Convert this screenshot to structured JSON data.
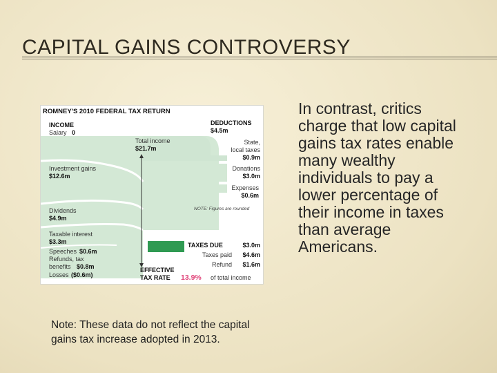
{
  "slide": {
    "title": "CAPITAL GAINS CONTROVERSY",
    "note": "Note: These data do not reflect the capital gains tax increase adopted in 2013.",
    "body": "In contrast, critics charge that low capital gains tax rates enable many wealthy individuals to pay a lower percentage of their income in taxes than average Americans."
  },
  "figure": {
    "title": "ROMNEY'S 2010 FEDERAL TAX RETURN",
    "income_header": "INCOME",
    "salary_label": "Salary",
    "salary_value": "0",
    "total_income_label": "Total income",
    "total_income_value": "$21.7m",
    "investment_label": "Investment gains",
    "investment_value": "$12.6m",
    "dividends_label": "Dividends",
    "dividends_value": "$4.9m",
    "interest_label": "Taxable interest",
    "interest_value": "$3.3m",
    "speeches_label": "Speeches",
    "speeches_value": "$0.6m",
    "refunds_label_1": "Refunds, tax",
    "refunds_label_2": "benefits",
    "refunds_value": "$0.8m",
    "losses_label": "Losses",
    "losses_value": "($0.6m)",
    "deductions_header": "DEDUCTIONS",
    "deductions_value": "$4.5m",
    "state_label_1": "State,",
    "state_label_2": "local taxes",
    "state_value": "$0.9m",
    "donations_label": "Donations",
    "donations_value": "$3.0m",
    "expenses_label": "Expenses",
    "expenses_value": "$0.6m",
    "rounding_note": "NOTE: Figures are rounded",
    "taxes_due_label": "TAXES DUE",
    "taxes_due_value": "$3.0m",
    "taxes_paid_label": "Taxes paid",
    "taxes_paid_value": "$4.6m",
    "refund_label": "Refund",
    "refund_value": "$1.6m",
    "effective_label_1": "EFFECTIVE",
    "effective_label_2": "TAX RATE",
    "effective_rate": "13.9%",
    "effective_suffix": "of total income"
  },
  "colors": {
    "flow_light": "#d3e8d5",
    "flow_dark": "#2f9a52",
    "rate_highlight": "#e0457a",
    "background": "#efe6c9"
  }
}
